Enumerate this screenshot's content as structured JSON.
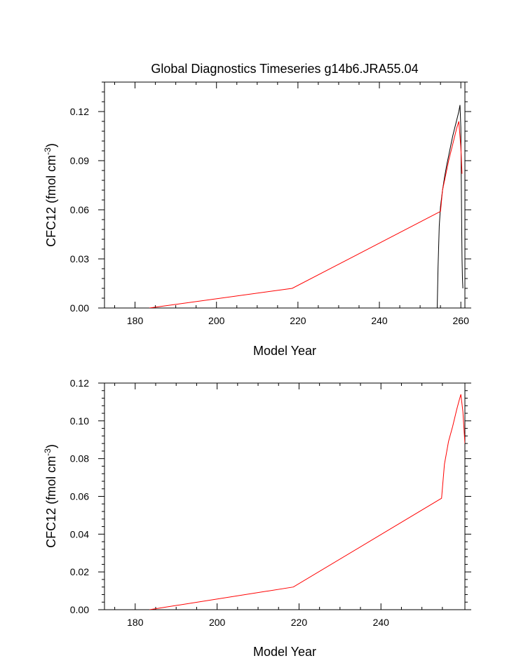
{
  "chart_data": [
    {
      "type": "line",
      "title": "Global Diagnostics Timeseries g14b6.JRA55.04",
      "xlabel": "Model Year",
      "ylabel": "CFC12 (fmol cm^-3)",
      "ylabel_parts": [
        "CFC12 (fmol cm",
        "-3",
        ")"
      ],
      "xlim": [
        172.5,
        261
      ],
      "ylim": [
        0,
        0.138
      ],
      "xticks": [
        180,
        200,
        220,
        240,
        260
      ],
      "xtick_labels": [
        "180",
        "200",
        "220",
        "240",
        "260"
      ],
      "yticks": [
        0,
        0.03,
        0.06,
        0.09,
        0.12
      ],
      "ytick_labels": [
        "0.00",
        "0.03",
        "0.06",
        "0.09",
        "0.12"
      ],
      "series": [
        {
          "color": "#000000",
          "x": [
            254.2,
            254.4,
            254.7,
            255.0,
            255.5,
            256.0,
            256.5,
            257.0,
            257.5,
            258.0,
            258.5,
            259.0,
            259.5,
            259.8,
            260.0,
            260.1,
            260.2,
            260.3,
            260.4,
            260.5
          ],
          "y": [
            0.0,
            0.025,
            0.05,
            0.062,
            0.072,
            0.08,
            0.087,
            0.093,
            0.099,
            0.105,
            0.11,
            0.115,
            0.12,
            0.124,
            0.11,
            0.08,
            0.05,
            0.03,
            0.018,
            0.012
          ]
        },
        {
          "color": "#ff0000",
          "x": [
            183.5,
            218.6,
            255.0,
            255.5,
            256.0,
            257.0,
            258.0,
            259.0,
            259.5,
            260.0,
            260.3
          ],
          "y": [
            0.0,
            0.012,
            0.059,
            0.072,
            0.078,
            0.09,
            0.1,
            0.11,
            0.114,
            0.098,
            0.082
          ]
        }
      ]
    },
    {
      "type": "line",
      "title": "",
      "xlabel": "Model Year",
      "ylabel": "CFC12 (fmol cm^-3)",
      "ylabel_parts": [
        "CFC12 (fmol cm",
        "-3",
        ")"
      ],
      "xlim": [
        172.5,
        260.5
      ],
      "ylim": [
        0,
        0.12
      ],
      "xticks": [
        180,
        200,
        220,
        240
      ],
      "xtick_labels": [
        "180",
        "200",
        "220",
        "240"
      ],
      "yticks": [
        0,
        0.02,
        0.04,
        0.06,
        0.08,
        0.1,
        0.12
      ],
      "ytick_labels": [
        "0.00",
        "0.02",
        "0.04",
        "0.06",
        "0.08",
        "0.10",
        "0.12"
      ],
      "series": [
        {
          "color": "#ff0000",
          "x": [
            183.5,
            218.6,
            254.8,
            255.5,
            256.5,
            257.5,
            258.5,
            259.0,
            259.5,
            260.0,
            260.5
          ],
          "y": [
            0.0,
            0.012,
            0.059,
            0.077,
            0.089,
            0.097,
            0.106,
            0.11,
            0.114,
            0.105,
            0.088
          ]
        }
      ]
    }
  ]
}
